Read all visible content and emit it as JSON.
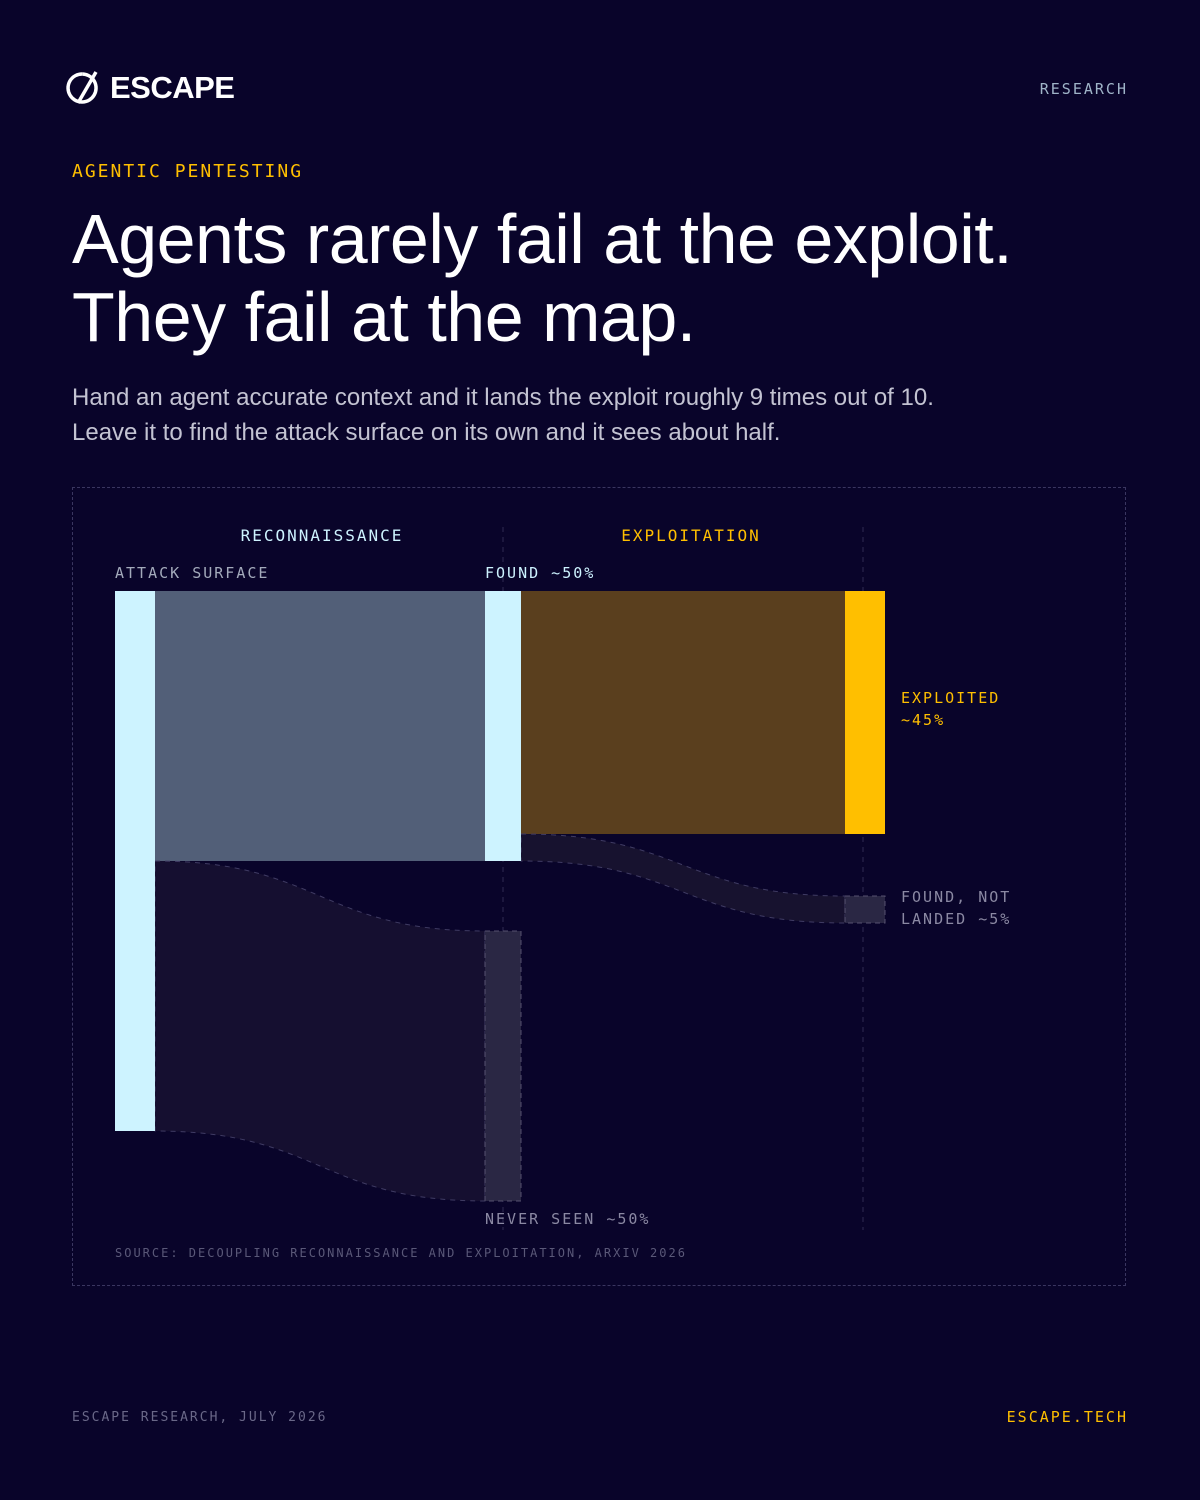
{
  "header": {
    "logo": "ESCAPE",
    "tag": "RESEARCH"
  },
  "kicker": "AGENTIC PENTESTING",
  "chart_data": {
    "type": "sankey",
    "title": "Agents rarely fail at the exploit.\nThey fail at the map.",
    "subtitle": "Hand an agent accurate context and it lands the exploit roughly 9 times out of 10.\nLeave it to find the attack surface on its own and it sees about half.",
    "stages": [
      {
        "label": "RECONNAISSANCE",
        "color": "#cdf3ff"
      },
      {
        "label": "EXPLOITATION",
        "color": "#ffbf00"
      }
    ],
    "columns": [
      [
        {
          "label": "ATTACK SURFACE",
          "value": 100,
          "color": "#cdf3ff",
          "label_color": "#a3aabb"
        }
      ],
      [
        {
          "label": "FOUND ~50%",
          "value": 50,
          "color": "#cdf3ff",
          "label_color": "#cdf3ff",
          "link_color": "#525f78"
        },
        {
          "label": "NEVER SEEN ~50%",
          "value": 50,
          "color": "#2a2744",
          "label_color": "#8b89a3",
          "link_color": "#150f30"
        }
      ],
      [
        {
          "label": "EXPLOITED\n~45%",
          "value": 45,
          "color": "#ffbf00",
          "label_color": "#ffbf00",
          "link_color": "#5a3f1e"
        },
        {
          "label": "FOUND, NOT\nLANDED ~5%",
          "value": 5,
          "color": "#2a2744",
          "label_color": "#8b89a3",
          "link_color": "#17122f"
        }
      ]
    ],
    "source": "SOURCE: DECOUPLING RECONNAISSANCE AND EXPLOITATION, ARXIV 2026"
  },
  "footer": {
    "left": "ESCAPE RESEARCH, JULY 2026",
    "right": "ESCAPE.TECH"
  }
}
